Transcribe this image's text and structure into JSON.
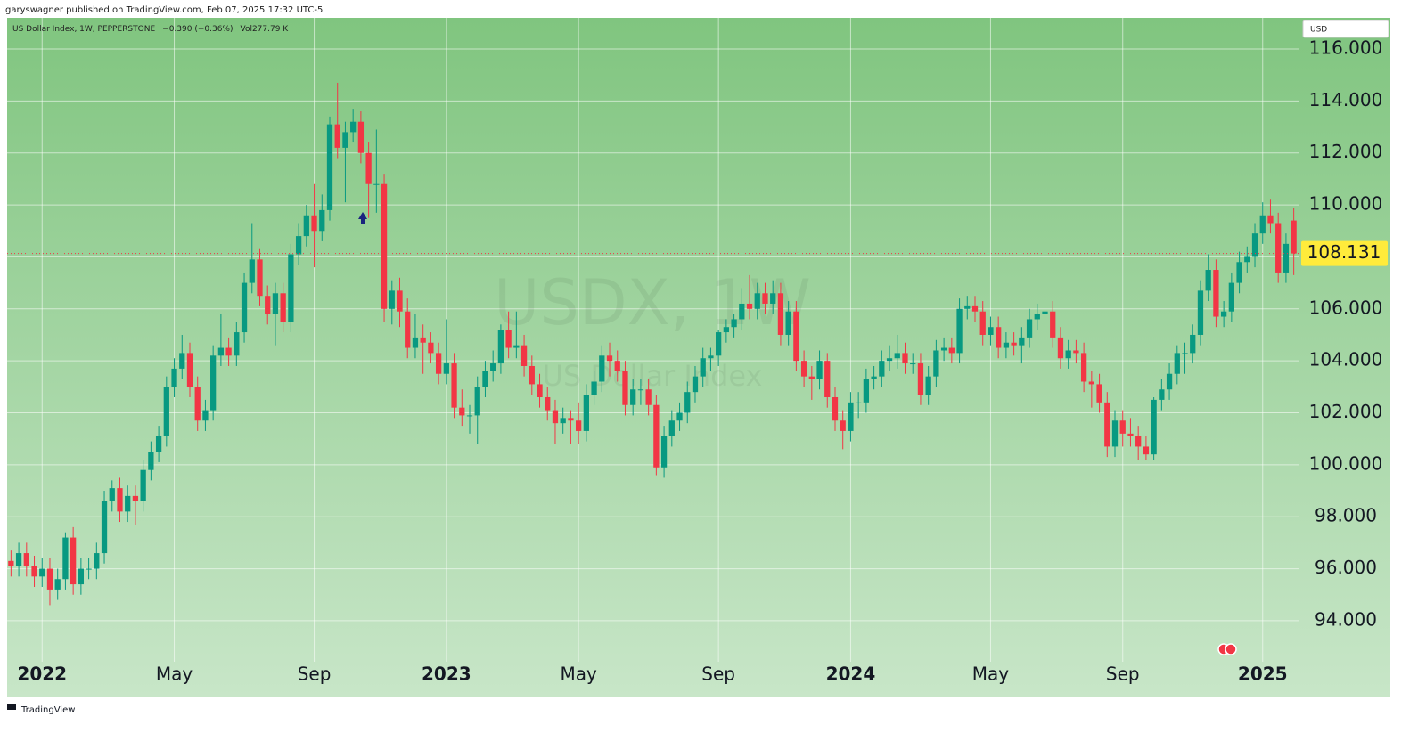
{
  "header": {
    "publisher": "garyswagner published on TradingView.com, Feb 07, 2025 17:32 UTC-5"
  },
  "footer": {
    "brand": "TradingView"
  },
  "chart_data": {
    "type": "candlestick",
    "title": "US Dollar Index, 1W, PEPPERSTONE",
    "change_label": "−0.390 (−0.36%)",
    "volume_label": "Vol277.79 K",
    "currency": "USD",
    "watermark": "USDX, 1W",
    "watermark_subtitle": "US Dollar Index",
    "up_color": "#089981",
    "down_color": "#f23645",
    "grid": true,
    "ylim": [
      91.05,
      117.2
    ],
    "yticks": [
      {
        "value": 94,
        "label": "94.000"
      },
      {
        "value": 96,
        "label": "96.000"
      },
      {
        "value": 98,
        "label": "98.000"
      },
      {
        "value": 100,
        "label": "100.000"
      },
      {
        "value": 102,
        "label": "102.000"
      },
      {
        "value": 104,
        "label": "104.000"
      },
      {
        "value": 106,
        "label": "106.000"
      },
      {
        "value": 108,
        "label": "108.000"
      },
      {
        "value": 110,
        "label": "110.000"
      },
      {
        "value": 112,
        "label": "112.000"
      },
      {
        "value": 114,
        "label": "114.000"
      },
      {
        "value": 116,
        "label": "116.000"
      }
    ],
    "categories": [
      null,
      null,
      null,
      null,
      "2022",
      null,
      null,
      null,
      null,
      null,
      null,
      null,
      null,
      null,
      null,
      null,
      null,
      null,
      null,
      null,
      null,
      "May",
      null,
      null,
      null,
      null,
      null,
      null,
      null,
      null,
      null,
      null,
      null,
      null,
      null,
      null,
      null,
      null,
      null,
      "Sep",
      null,
      null,
      null,
      null,
      null,
      null,
      null,
      null,
      null,
      null,
      null,
      null,
      null,
      null,
      null,
      null,
      "2023",
      null,
      null,
      null,
      null,
      null,
      null,
      null,
      null,
      null,
      null,
      null,
      null,
      null,
      null,
      null,
      null,
      "May",
      null,
      null,
      null,
      null,
      null,
      null,
      null,
      null,
      null,
      null,
      null,
      null,
      null,
      null,
      null,
      null,
      null,
      "Sep",
      null,
      null,
      null,
      null,
      null,
      null,
      null,
      null,
      null,
      null,
      null,
      null,
      null,
      null,
      null,
      null,
      "2024",
      null,
      null,
      null,
      null,
      null,
      null,
      null,
      null,
      null,
      null,
      null,
      null,
      null,
      null,
      null,
      null,
      null,
      "May",
      null,
      null,
      null,
      null,
      null,
      null,
      null,
      null,
      null,
      null,
      null,
      null,
      null,
      null,
      null,
      null,
      "Sep",
      null,
      null,
      null,
      null,
      null,
      null,
      null,
      null,
      null,
      null,
      null,
      null,
      null,
      null,
      null,
      null,
      null,
      "2025",
      null,
      null,
      null,
      null
    ],
    "ohlc": {
      "open": [
        96.3,
        96.1,
        96.6,
        96.1,
        95.7,
        96.0,
        95.2,
        95.6,
        97.2,
        95.4,
        96.0,
        96.0,
        96.6,
        98.6,
        99.1,
        98.2,
        98.8,
        98.6,
        99.8,
        100.5,
        101.1,
        103.0,
        103.7,
        104.3,
        103.0,
        101.7,
        102.1,
        104.2,
        104.5,
        104.2,
        105.1,
        107.0,
        107.9,
        106.5,
        105.8,
        106.6,
        105.5,
        108.1,
        108.8,
        109.6,
        109.0,
        109.8,
        113.1,
        112.2,
        112.8,
        113.2,
        112.0,
        110.8,
        110.8,
        106.0,
        106.7,
        105.9,
        104.5,
        104.9,
        104.7,
        104.3,
        103.5,
        103.9,
        102.2,
        101.9,
        101.9,
        103.0,
        103.6,
        103.9,
        105.2,
        104.5,
        104.6,
        103.8,
        103.1,
        102.6,
        102.1,
        101.6,
        101.8,
        101.7,
        101.3,
        102.7,
        103.2,
        104.2,
        104.0,
        103.6,
        102.3,
        102.9,
        102.9,
        102.3,
        99.9,
        101.1,
        101.7,
        102.0,
        102.8,
        103.4,
        104.1,
        104.2,
        105.1,
        105.3,
        105.6,
        106.2,
        106.0,
        106.6,
        106.2,
        106.6,
        105.0,
        105.9,
        104.0,
        103.4,
        103.3,
        104.0,
        102.6,
        101.7,
        101.3,
        102.4,
        102.4,
        103.3,
        103.4,
        104.0,
        104.1,
        104.3,
        103.9,
        103.9,
        102.7,
        103.4,
        104.4,
        104.5,
        104.3,
        106.0,
        106.1,
        105.9,
        105.0,
        105.3,
        104.5,
        104.7,
        104.6,
        104.9,
        105.6,
        105.8,
        105.9,
        104.9,
        104.1,
        104.4,
        104.3,
        103.2,
        103.1,
        102.4,
        100.7,
        101.7,
        101.2,
        101.1,
        100.7,
        100.4,
        102.5,
        102.9,
        103.5,
        104.3,
        104.3,
        105.0,
        106.7,
        107.5,
        105.7,
        105.9,
        107.0,
        107.8,
        108.0,
        108.9,
        109.6,
        109.3,
        107.4,
        109.4
      ],
      "high": [
        96.7,
        97.0,
        97.0,
        96.5,
        96.4,
        96.4,
        96.0,
        97.4,
        97.6,
        96.4,
        96.4,
        97.0,
        99.0,
        99.4,
        99.5,
        99.2,
        99.2,
        100.2,
        100.9,
        101.5,
        103.4,
        104.1,
        105.0,
        104.7,
        103.4,
        102.5,
        104.6,
        105.8,
        104.9,
        105.5,
        107.4,
        109.3,
        108.3,
        106.9,
        107.0,
        107.0,
        108.5,
        109.3,
        110.0,
        110.8,
        110.4,
        113.4,
        114.7,
        113.2,
        113.7,
        113.6,
        112.4,
        112.9,
        111.2,
        107.1,
        107.2,
        106.4,
        105.8,
        105.4,
        105.1,
        104.7,
        105.6,
        104.3,
        102.9,
        102.3,
        103.4,
        104.0,
        104.4,
        105.4,
        105.9,
        105.9,
        105.0,
        104.2,
        103.5,
        103.0,
        102.5,
        102.2,
        102.1,
        102.4,
        103.1,
        103.6,
        104.6,
        104.7,
        104.4,
        104.0,
        103.3,
        103.3,
        103.3,
        102.7,
        101.5,
        102.1,
        102.4,
        103.2,
        103.8,
        104.5,
        104.5,
        105.2,
        105.6,
        105.8,
        106.8,
        107.3,
        107.0,
        107.0,
        107.1,
        107.0,
        106.3,
        106.3,
        104.4,
        103.8,
        104.4,
        104.3,
        103.0,
        102.1,
        102.8,
        102.8,
        103.7,
        103.8,
        104.4,
        104.6,
        105.0,
        104.7,
        104.3,
        104.3,
        103.8,
        104.8,
        104.9,
        104.9,
        106.4,
        106.5,
        106.5,
        106.3,
        105.7,
        105.7,
        105.1,
        105.1,
        105.3,
        106.0,
        106.2,
        106.1,
        106.3,
        105.3,
        104.8,
        104.8,
        104.7,
        103.6,
        103.5,
        102.8,
        102.1,
        102.1,
        101.8,
        101.5,
        101.1,
        102.6,
        103.3,
        103.9,
        104.6,
        104.7,
        105.4,
        107.1,
        108.1,
        107.9,
        106.3,
        107.4,
        108.2,
        108.4,
        109.3,
        110.1,
        110.2,
        109.7,
        108.9,
        109.9
      ],
      "low": [
        95.7,
        95.7,
        95.7,
        95.3,
        95.3,
        94.6,
        94.8,
        95.2,
        95.0,
        95.0,
        95.6,
        95.6,
        96.2,
        98.2,
        97.8,
        97.8,
        97.7,
        98.2,
        99.4,
        100.1,
        100.7,
        102.6,
        103.3,
        102.6,
        101.3,
        101.3,
        101.7,
        103.8,
        103.8,
        103.8,
        104.7,
        106.6,
        106.1,
        105.4,
        104.6,
        105.1,
        105.1,
        107.7,
        108.4,
        107.6,
        108.6,
        109.4,
        111.8,
        110.1,
        112.4,
        111.6,
        109.5,
        109.7,
        105.5,
        105.4,
        105.3,
        104.1,
        104.1,
        103.5,
        103.9,
        103.1,
        103.1,
        101.8,
        101.5,
        101.2,
        100.8,
        102.6,
        103.2,
        103.5,
        104.1,
        104.1,
        103.4,
        102.7,
        102.2,
        101.7,
        100.8,
        101.2,
        100.8,
        100.8,
        100.9,
        102.3,
        102.8,
        103.4,
        103.2,
        101.9,
        101.9,
        102.3,
        101.9,
        99.6,
        99.5,
        100.7,
        101.3,
        101.6,
        102.4,
        103.0,
        103.6,
        103.8,
        104.7,
        104.9,
        105.2,
        105.6,
        105.6,
        105.8,
        105.8,
        104.6,
        104.6,
        103.6,
        103.0,
        102.5,
        102.9,
        102.2,
        101.3,
        100.6,
        100.9,
        101.8,
        102.0,
        102.9,
        103.0,
        103.6,
        103.7,
        103.5,
        103.5,
        102.3,
        102.3,
        103.0,
        104.0,
        103.9,
        103.9,
        105.6,
        105.5,
        104.6,
        104.6,
        104.1,
        104.1,
        104.2,
        103.9,
        104.5,
        105.2,
        105.4,
        104.5,
        103.7,
        103.7,
        103.9,
        102.8,
        102.2,
        102.0,
        100.3,
        100.3,
        100.7,
        100.7,
        100.2,
        100.2,
        100.2,
        102.1,
        102.5,
        103.1,
        103.5,
        103.9,
        104.6,
        106.3,
        105.3,
        105.3,
        105.5,
        106.6,
        107.4,
        107.6,
        108.5,
        108.9,
        107.0,
        107.0,
        107.3
      ],
      "close": [
        96.1,
        96.6,
        96.1,
        95.7,
        96.0,
        95.2,
        95.6,
        97.2,
        95.4,
        96.0,
        96.0,
        96.6,
        98.6,
        99.1,
        98.2,
        98.8,
        98.6,
        99.8,
        100.5,
        101.1,
        103.0,
        103.7,
        104.3,
        103.0,
        101.7,
        102.1,
        104.2,
        104.5,
        104.2,
        105.1,
        107.0,
        107.9,
        106.5,
        105.8,
        106.6,
        105.5,
        108.1,
        108.8,
        109.6,
        109.0,
        109.8,
        113.1,
        112.2,
        112.8,
        113.2,
        112.0,
        110.8,
        110.8,
        106.0,
        106.7,
        105.9,
        104.5,
        104.9,
        104.7,
        104.3,
        103.5,
        103.9,
        102.2,
        101.9,
        101.9,
        103.0,
        103.6,
        103.9,
        105.2,
        104.5,
        104.6,
        103.8,
        103.1,
        102.6,
        102.1,
        101.6,
        101.8,
        101.7,
        101.3,
        102.7,
        103.2,
        104.2,
        104.0,
        103.6,
        102.3,
        102.9,
        102.9,
        102.3,
        99.9,
        101.1,
        101.7,
        102.0,
        102.8,
        103.4,
        104.1,
        104.2,
        105.1,
        105.3,
        105.6,
        106.2,
        106.0,
        106.6,
        106.2,
        106.6,
        105.0,
        105.9,
        104.0,
        103.4,
        103.3,
        104.0,
        102.6,
        101.7,
        101.3,
        102.4,
        102.4,
        103.3,
        103.4,
        104.0,
        104.1,
        104.3,
        103.9,
        103.9,
        102.7,
        103.4,
        104.4,
        104.5,
        104.3,
        106.0,
        106.1,
        105.9,
        105.0,
        105.3,
        104.5,
        104.7,
        104.6,
        104.9,
        105.6,
        105.8,
        105.9,
        104.9,
        104.1,
        104.4,
        104.3,
        103.2,
        103.1,
        102.4,
        100.7,
        101.7,
        101.2,
        101.1,
        100.7,
        100.4,
        102.5,
        102.9,
        103.5,
        104.3,
        104.3,
        105.0,
        106.7,
        107.5,
        105.7,
        105.9,
        107.0,
        107.8,
        108.0,
        108.9,
        109.6,
        109.3,
        107.4,
        108.5,
        108.131
      ]
    }
  }
}
